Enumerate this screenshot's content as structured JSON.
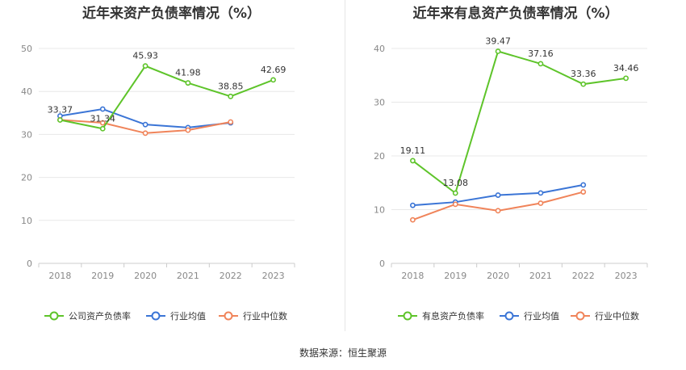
{
  "source_label": "数据来源：恒生聚源",
  "colors": {
    "company": "#5ec42a",
    "industry_avg": "#3b75d6",
    "industry_median": "#f0845a"
  },
  "chart_data": [
    {
      "type": "line",
      "title": "近年来资产负债率情况（%）",
      "categories": [
        "2018",
        "2019",
        "2020",
        "2021",
        "2022",
        "2023"
      ],
      "ylim": [
        0,
        50
      ],
      "yticks": [
        0,
        10,
        20,
        30,
        40,
        50
      ],
      "grid": true,
      "legend_position": "bottom",
      "series": [
        {
          "name": "公司资产负债率",
          "color": "#5ec42a",
          "values": [
            33.37,
            31.34,
            45.93,
            41.98,
            38.85,
            42.69
          ],
          "labels": [
            "33.37",
            "31.34",
            "45.93",
            "41.98",
            "38.85",
            "42.69"
          ]
        },
        {
          "name": "行业均值",
          "color": "#3b75d6",
          "values": [
            34.3,
            35.9,
            32.3,
            31.6,
            32.7,
            null
          ],
          "labels": []
        },
        {
          "name": "行业中位数",
          "color": "#f0845a",
          "values": [
            33.4,
            32.7,
            30.3,
            31.0,
            32.9,
            null
          ],
          "labels": []
        }
      ]
    },
    {
      "type": "line",
      "title": "近年来有息资产负债率情况（%）",
      "categories": [
        "2018",
        "2019",
        "2020",
        "2021",
        "2022",
        "2023"
      ],
      "ylim": [
        0,
        40
      ],
      "yticks": [
        0,
        10,
        20,
        30,
        40
      ],
      "grid": true,
      "legend_position": "bottom",
      "series": [
        {
          "name": "有息资产负债率",
          "color": "#5ec42a",
          "values": [
            19.11,
            13.08,
            39.47,
            37.16,
            33.36,
            34.46
          ],
          "labels": [
            "19.11",
            "13.08",
            "39.47",
            "37.16",
            "33.36",
            "34.46"
          ]
        },
        {
          "name": "行业均值",
          "color": "#3b75d6",
          "values": [
            10.8,
            11.4,
            12.7,
            13.1,
            14.6,
            null
          ],
          "labels": []
        },
        {
          "name": "行业中位数",
          "color": "#f0845a",
          "values": [
            8.1,
            11.0,
            9.8,
            11.2,
            13.3,
            null
          ],
          "labels": []
        }
      ]
    }
  ]
}
